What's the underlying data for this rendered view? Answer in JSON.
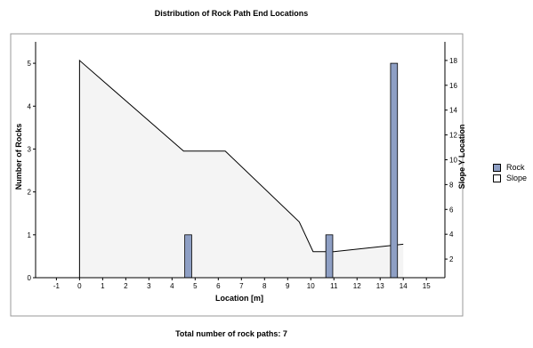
{
  "chart_data": {
    "type": "bar",
    "title": "Distribution of Rock Path End Locations",
    "xlabel": "Location [m]",
    "ylabel": "Number of Rocks",
    "y2label": "Slope Y Location",
    "xlim": [
      -1.9,
      15.8
    ],
    "ylim": [
      0,
      5.5
    ],
    "y2lim": [
      0.5,
      19.5
    ],
    "xticks": [
      -1,
      0,
      1,
      2,
      3,
      4,
      5,
      6,
      7,
      8,
      9,
      10,
      11,
      12,
      13,
      14,
      15
    ],
    "yticks": [
      0,
      1,
      2,
      3,
      4,
      5
    ],
    "y2ticks": [
      2,
      4,
      6,
      8,
      10,
      12,
      14,
      16,
      18
    ],
    "bar_width": 0.3,
    "series": [
      {
        "name": "Rock",
        "type": "bar",
        "x": [
          4.7,
          10.8,
          13.6
        ],
        "values": [
          1,
          1,
          5
        ],
        "color": "#8e9fc4"
      },
      {
        "name": "Slope",
        "type": "area",
        "x": [
          0,
          4.5,
          6.3,
          9.5,
          10.1,
          11.0,
          14.0
        ],
        "values": [
          18,
          10.7,
          10.7,
          5.0,
          2.6,
          2.6,
          3.2
        ],
        "color": "#f4f4f4"
      }
    ],
    "grid": false,
    "legend": "right",
    "note": "Total number of rock paths: 7"
  }
}
